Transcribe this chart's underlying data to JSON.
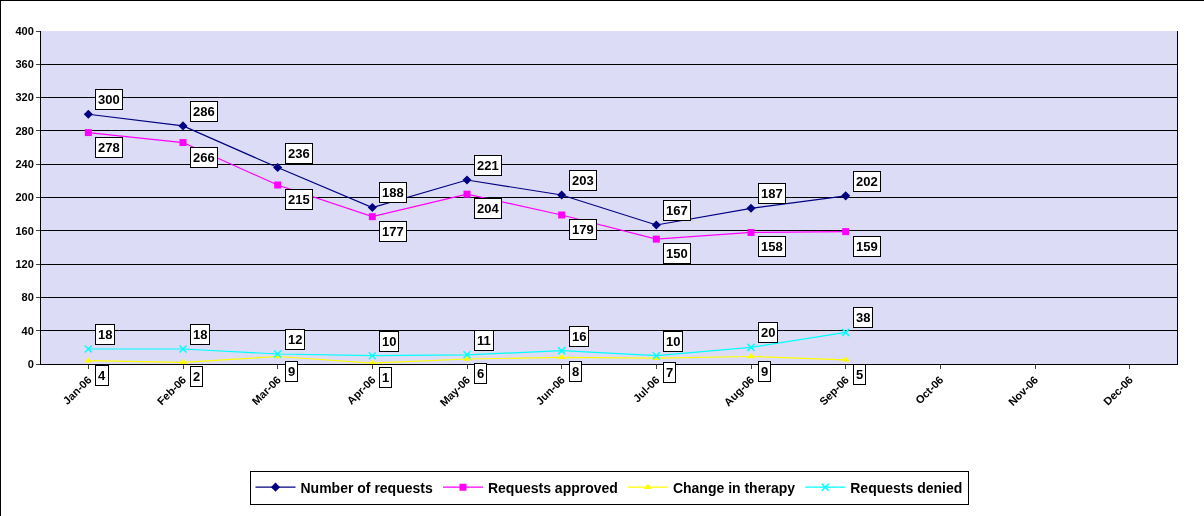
{
  "chart_data": {
    "type": "line",
    "categories": [
      "Jan-06",
      "Feb-06",
      "Mar-06",
      "Apr-06",
      "May-06",
      "Jun-06",
      "Jul-06",
      "Aug-06",
      "Sep-06",
      "Oct-06",
      "Nov-06",
      "Dec-06"
    ],
    "series": [
      {
        "name": "Number of requests",
        "color": "#000080",
        "marker": "diamond",
        "values": [
          300,
          286,
          236,
          188,
          221,
          203,
          167,
          187,
          202,
          null,
          null,
          null
        ]
      },
      {
        "name": "Requests approved",
        "color": "#ff00ff",
        "marker": "square",
        "values": [
          278,
          266,
          215,
          177,
          204,
          179,
          150,
          158,
          159,
          null,
          null,
          null
        ]
      },
      {
        "name": "Change in therapy",
        "color": "#ffff00",
        "marker": "triangle",
        "values": [
          4,
          2,
          9,
          1,
          6,
          8,
          7,
          9,
          5,
          null,
          null,
          null
        ]
      },
      {
        "name": "Requests denied",
        "color": "#00ffff",
        "marker": "cross",
        "values": [
          18,
          18,
          12,
          10,
          11,
          16,
          10,
          20,
          38,
          null,
          null,
          null
        ]
      }
    ],
    "ylim": [
      0,
      400
    ],
    "yticks": [
      0,
      40,
      80,
      120,
      160,
      200,
      240,
      280,
      320,
      360,
      400
    ],
    "grid": "y",
    "legend": "bottom",
    "data_labels": true
  }
}
